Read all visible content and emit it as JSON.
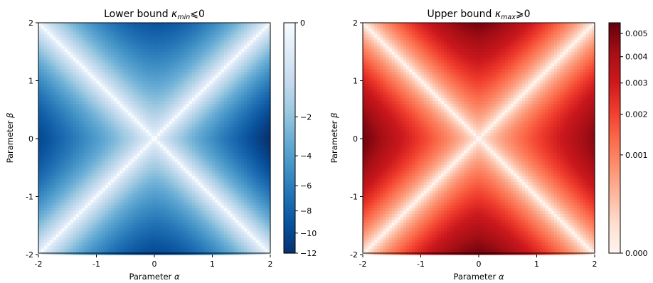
{
  "chart_data": [
    {
      "type": "heatmap",
      "title": "Lower bound κmin⩽0",
      "title_main": "Lower bound ",
      "title_symbol": "κ",
      "title_sub": "min",
      "title_rel": "⩽0",
      "xlabel_main": "Parameter ",
      "xlabel_symbol": "α",
      "ylabel_main": "Parameter ",
      "ylabel_symbol": "β",
      "xlim": [
        -2,
        2
      ],
      "ylim": [
        -2,
        2
      ],
      "xticks": [
        "-2",
        "-1",
        "0",
        "1",
        "2"
      ],
      "yticks": [
        "-2",
        "-1",
        "0",
        "1",
        "2"
      ],
      "colormap": "Blues_r",
      "value_range": [
        -12,
        0
      ],
      "colorbar_ticks": [
        {
          "value": 0,
          "label": "0"
        },
        {
          "value": -2,
          "label": "−2"
        },
        {
          "value": -4,
          "label": "−4"
        },
        {
          "value": -6,
          "label": "−6"
        },
        {
          "value": -8,
          "label": "−8"
        },
        {
          "value": -10,
          "label": "−10"
        },
        {
          "value": -12,
          "label": "−12"
        }
      ],
      "field_description": "zero along both diagonals β=±α, most negative near (±2,0) and (0,±2)",
      "sample_values": [
        {
          "alpha": 0,
          "beta": 0,
          "value": 0
        },
        {
          "alpha": 1,
          "beta": 1,
          "value": 0
        },
        {
          "alpha": 2,
          "beta": 0,
          "value": -12
        },
        {
          "alpha": -2,
          "beta": 0,
          "value": -10
        },
        {
          "alpha": 0,
          "beta": 2,
          "value": -9
        },
        {
          "alpha": 0,
          "beta": -2,
          "value": -10
        },
        {
          "alpha": 1,
          "beta": 0,
          "value": -4
        }
      ]
    },
    {
      "type": "heatmap",
      "title": "Upper bound κmax⩾0",
      "title_main": "Upper bound ",
      "title_symbol": "κ",
      "title_sub": "max",
      "title_rel": "⩾0",
      "xlabel_main": "Parameter ",
      "xlabel_symbol": "α",
      "ylabel_main": "Parameter ",
      "ylabel_symbol": "β",
      "xlim": [
        -2,
        2
      ],
      "ylim": [
        -2,
        2
      ],
      "xticks": [
        "-2",
        "-1",
        "0",
        "1",
        "2"
      ],
      "yticks": [
        "-2",
        "-1",
        "0",
        "1",
        "2"
      ],
      "colormap": "Reds",
      "value_range": [
        0,
        0.0055
      ],
      "colorbar_ticks": [
        {
          "value": 0,
          "label": "0.000"
        },
        {
          "value": 0.001,
          "label": "0.001"
        },
        {
          "value": 0.002,
          "label": "0.002"
        },
        {
          "value": 0.003,
          "label": "0.003"
        },
        {
          "value": 0.004,
          "label": "0.004"
        },
        {
          "value": 0.005,
          "label": "0.005"
        }
      ],
      "field_description": "zero along both diagonals β=±α, largest near (±2,0) and (0,±2)",
      "sample_values": [
        {
          "alpha": 0,
          "beta": 0,
          "value": 0
        },
        {
          "alpha": 1,
          "beta": 1,
          "value": 0
        },
        {
          "alpha": -2,
          "beta": 0,
          "value": 0.0053
        },
        {
          "alpha": 2,
          "beta": 0,
          "value": 0.0048
        },
        {
          "alpha": 0,
          "beta": 2,
          "value": 0.0052
        },
        {
          "alpha": 0,
          "beta": -2,
          "value": 0.0053
        },
        {
          "alpha": 1,
          "beta": 0,
          "value": 0.0025
        }
      ]
    }
  ]
}
